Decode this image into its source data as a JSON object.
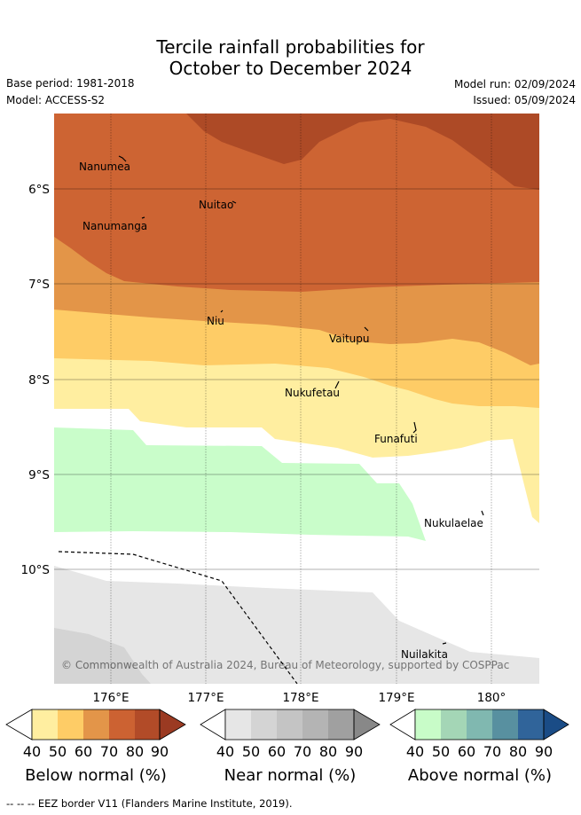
{
  "title": {
    "line1": "Tercile rainfall probabilities for",
    "line2": "October to December 2024"
  },
  "meta": {
    "base_period": "Base period: 1981-2018",
    "model": "Model: ACCESS-S2",
    "model_run": "Model run: 02/09/2024",
    "issued": "Issued: 05/09/2024"
  },
  "map": {
    "lat_labels": [
      "6°S",
      "7°S",
      "8°S",
      "9°S",
      "10°S"
    ],
    "lon_labels": [
      "176°E",
      "177°E",
      "178°E",
      "179°E",
      "180°"
    ],
    "places": [
      "Nanumea",
      "Nuitao",
      "Nanumanga",
      "Niu",
      "Vaitupu",
      "Nukufetau",
      "Funafuti",
      "Nukulaelae",
      "Nuilakita"
    ],
    "copyright": "© Commonwealth of Australia 2024, Bureau of Meteorology, supported by COSPPac"
  },
  "colorbars": [
    {
      "title": "Below normal (%)",
      "ticks": [
        "40",
        "50",
        "60",
        "70",
        "80",
        "90"
      ],
      "colors": [
        "#ffeea0",
        "#fecc66",
        "#e39549",
        "#cc6232",
        "#b24b28",
        "#9b3a22"
      ]
    },
    {
      "title": "Near normal (%)",
      "ticks": [
        "40",
        "50",
        "60",
        "70",
        "80",
        "90"
      ],
      "colors": [
        "#e6e6e6",
        "#d4d4d4",
        "#c4c4c4",
        "#b4b4b4",
        "#a0a0a0",
        "#888888"
      ]
    },
    {
      "title": "Above normal (%)",
      "ticks": [
        "40",
        "50",
        "60",
        "70",
        "80",
        "90"
      ],
      "colors": [
        "#c8fcc8",
        "#a4d6b6",
        "#80b8b0",
        "#5890a0",
        "#30649a",
        "#1a4c86"
      ]
    }
  ],
  "footer": "--  --  -- EEZ border V11 (Flanders Marine Institute, 2019).",
  "colors": {
    "bn_90": "#ad4a26",
    "bn_80": "#cd6433",
    "bn_60": "#e39548",
    "bn_50": "#fecc66",
    "bn_40": "#ffeea0",
    "an_40": "#c9fdca",
    "nn_40": "#e6e6e6",
    "nn_50": "#d4d4d4"
  }
}
